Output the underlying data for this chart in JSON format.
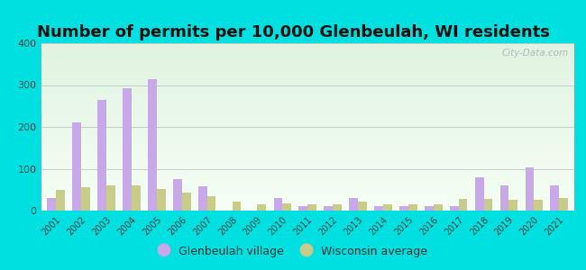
{
  "title": "Number of permits per 10,000 Glenbeulah, WI residents",
  "years": [
    2001,
    2002,
    2003,
    2004,
    2005,
    2006,
    2007,
    2008,
    2009,
    2010,
    2011,
    2012,
    2013,
    2014,
    2015,
    2016,
    2017,
    2018,
    2019,
    2020,
    2021
  ],
  "glenbeulah": [
    30,
    210,
    265,
    293,
    315,
    75,
    57,
    0,
    0,
    30,
    10,
    10,
    30,
    10,
    10,
    10,
    10,
    80,
    60,
    103,
    60
  ],
  "wisconsin": [
    50,
    55,
    60,
    60,
    52,
    42,
    35,
    22,
    15,
    18,
    15,
    15,
    22,
    15,
    15,
    15,
    28,
    28,
    25,
    25,
    30
  ],
  "glenbeulah_color": "#c8a8e8",
  "wisconsin_color": "#c8cc88",
  "background_outer": "#00e0e0",
  "ylim": [
    0,
    400
  ],
  "yticks": [
    0,
    100,
    200,
    300,
    400
  ],
  "title_fontsize": 13,
  "legend_labels": [
    "Glenbeulah village",
    "Wisconsin average"
  ],
  "bar_width": 0.35,
  "watermark": "City-Data.com"
}
